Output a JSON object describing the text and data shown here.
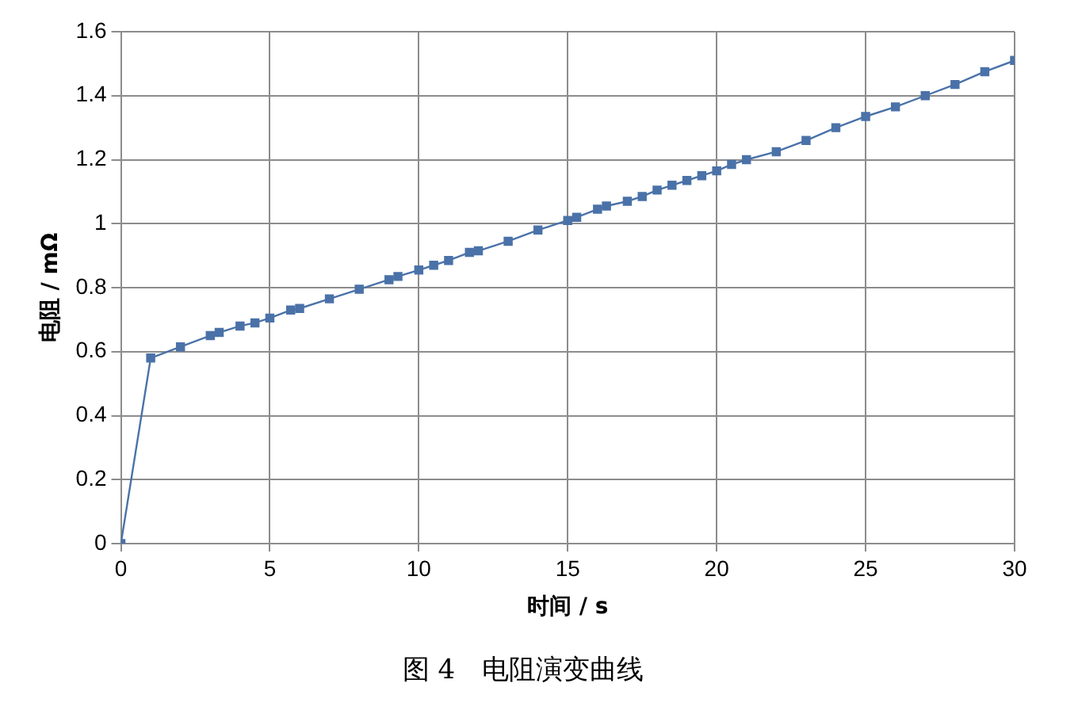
{
  "chart_data": {
    "type": "line",
    "title": "图 4　电阻演变曲线",
    "xlabel": "时间 / s",
    "ylabel": "电阻 / mΩ",
    "x": [
      0,
      1,
      2,
      3,
      3.3,
      4,
      4.5,
      5,
      5.7,
      6,
      7,
      8,
      9,
      9.3,
      10,
      10.5,
      11,
      11.7,
      12,
      13,
      14,
      15,
      15.3,
      16,
      16.3,
      17,
      17.5,
      18,
      18.5,
      19,
      19.5,
      20,
      20.5,
      21,
      22,
      23,
      24,
      25,
      26,
      27,
      28,
      29,
      30
    ],
    "series": [
      {
        "color": "#4a72a8",
        "values": [
          0,
          0.58,
          0.615,
          0.65,
          0.66,
          0.68,
          0.69,
          0.705,
          0.73,
          0.735,
          0.765,
          0.795,
          0.825,
          0.835,
          0.855,
          0.87,
          0.885,
          0.91,
          0.915,
          0.945,
          0.98,
          1.01,
          1.02,
          1.045,
          1.055,
          1.07,
          1.085,
          1.105,
          1.12,
          1.135,
          1.15,
          1.165,
          1.185,
          1.2,
          1.225,
          1.26,
          1.3,
          1.335,
          1.365,
          1.4,
          1.435,
          1.475,
          1.51
        ]
      }
    ],
    "xlim": [
      0,
      30
    ],
    "xticks": [
      0,
      5,
      10,
      15,
      20,
      25,
      30
    ],
    "ylim": [
      0,
      1.6
    ],
    "yticks": [
      0,
      0.2,
      0.4,
      0.6,
      0.8,
      1,
      1.2,
      1.4,
      1.6
    ],
    "grid": true,
    "legend": false,
    "marker": "square",
    "line_style": "solid"
  }
}
